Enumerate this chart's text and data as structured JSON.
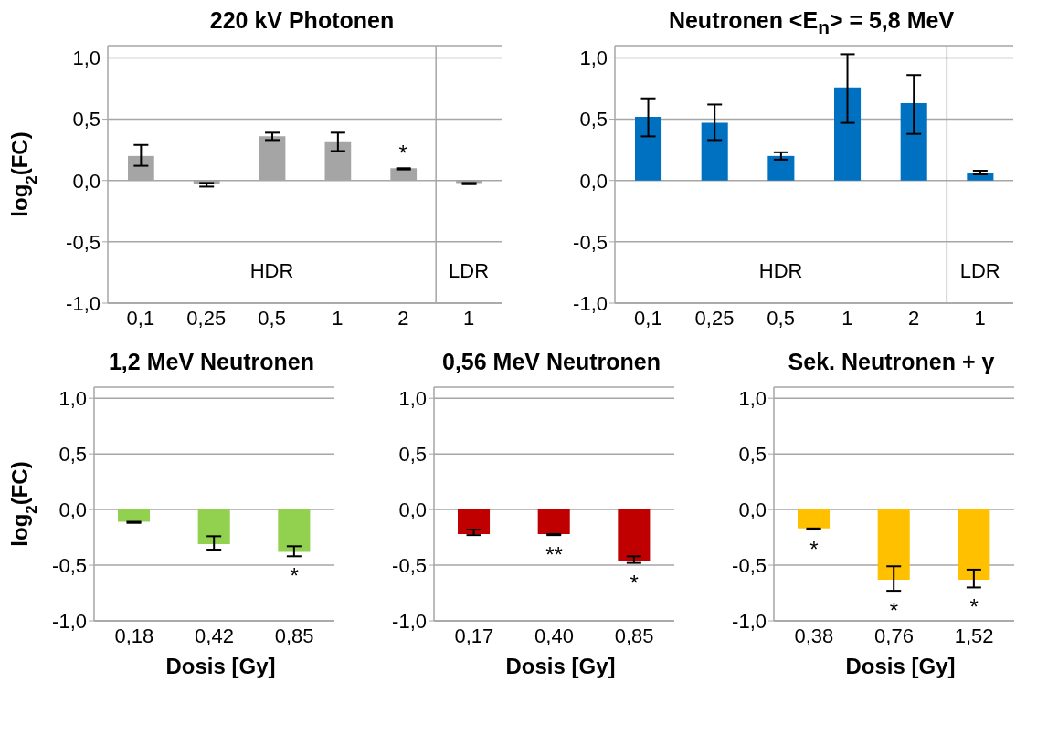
{
  "chart_data": [
    {
      "type": "bar",
      "title": "220 kV Photonen",
      "ylabel": "log$_{2}$(FC)",
      "categories": [
        "0,1",
        "0,25",
        "0,5",
        "1",
        "2",
        "1"
      ],
      "values": [
        0.2,
        -0.03,
        0.36,
        0.32,
        0.1,
        -0.02
      ],
      "errors": [
        [
          0.12,
          0.29
        ],
        [
          -0.05,
          -0.02
        ],
        [
          0.33,
          0.39
        ],
        [
          0.24,
          0.39
        ],
        [
          0.09,
          0.1
        ],
        [
          -0.03,
          -0.02
        ]
      ],
      "color": "#a5a5a5",
      "ylim": [
        -1,
        1.1
      ],
      "yticks": [
        {
          "value": -1,
          "label": "-1,0"
        },
        {
          "value": -0.5,
          "label": "-0,5"
        },
        {
          "value": 0,
          "label": "0,0"
        },
        {
          "value": 0.5,
          "label": "0,5"
        },
        {
          "value": 1,
          "label": "1,0"
        }
      ],
      "grid": "y",
      "annotations": [
        {
          "text": "*",
          "x": "2",
          "y": 0.1
        },
        "HDR",
        "LDR"
      ]
    },
    {
      "type": "bar",
      "title": "Neutronen <E$_{n}$> = 5,8 MeV",
      "categories": [
        "0,1",
        "0,25",
        "0,5",
        "1",
        "2",
        "1"
      ],
      "values": [
        0.52,
        0.47,
        0.2,
        0.76,
        0.63,
        0.06
      ],
      "errors": [
        [
          0.36,
          0.67
        ],
        [
          0.33,
          0.62
        ],
        [
          0.17,
          0.23
        ],
        [
          0.47,
          1.03
        ],
        [
          0.38,
          0.86
        ],
        [
          0.05,
          0.08
        ]
      ],
      "color": "#0070c0",
      "ylim": [
        -1,
        1.1
      ],
      "yticks": [
        {
          "value": -1,
          "label": "-1,0"
        },
        {
          "value": -0.5,
          "label": "-0,5"
        },
        {
          "value": 0,
          "label": "0,0"
        },
        {
          "value": 0.5,
          "label": "0,5"
        },
        {
          "value": 1,
          "label": "1,0"
        }
      ],
      "grid": "y",
      "annotations": [
        "HDR",
        "LDR"
      ]
    },
    {
      "type": "bar",
      "title": "1,2 MeV Neutronen",
      "ylabel": "log$_{2}$(FC)",
      "xlabel": "Dosis [Gy]",
      "categories": [
        "0,18",
        "0,42",
        "0,85"
      ],
      "values": [
        -0.11,
        -0.31,
        -0.38
      ],
      "errors": [
        [
          -0.12,
          -0.11
        ],
        [
          -0.36,
          -0.24
        ],
        [
          -0.42,
          -0.33
        ]
      ],
      "color": "#92d050",
      "ylim": [
        -1,
        1.1
      ],
      "yticks": [
        {
          "value": -1,
          "label": "-1,0"
        },
        {
          "value": -0.5,
          "label": "-0,5"
        },
        {
          "value": 0,
          "label": "0,0"
        },
        {
          "value": 0.5,
          "label": "0,5"
        },
        {
          "value": 1,
          "label": "1,0"
        }
      ],
      "grid": "y",
      "annotations": [
        {
          "text": "*",
          "x": "0,85",
          "y": -0.38
        }
      ]
    },
    {
      "type": "bar",
      "title": "0,56 MeV Neutronen",
      "xlabel": "Dosis [Gy]",
      "categories": [
        "0,17",
        "0,40",
        "0,85"
      ],
      "values": [
        -0.22,
        -0.22,
        -0.46
      ],
      "errors": [
        [
          -0.23,
          -0.18
        ],
        [
          -0.23,
          -0.22
        ],
        [
          -0.48,
          -0.42
        ]
      ],
      "color": "#c00000",
      "ylim": [
        -1,
        1.1
      ],
      "yticks": [
        {
          "value": -1,
          "label": "-1,0"
        },
        {
          "value": -0.5,
          "label": "-0,5"
        },
        {
          "value": 0,
          "label": "0,0"
        },
        {
          "value": 0.5,
          "label": "0,5"
        },
        {
          "value": 1,
          "label": "1,0"
        }
      ],
      "grid": "y",
      "annotations": [
        {
          "text": "**",
          "x": "0,40",
          "y": -0.22
        },
        {
          "text": "*",
          "x": "0,85",
          "y": -0.46
        }
      ]
    },
    {
      "type": "bar",
      "title": "Sek. Neutronen + γ",
      "xlabel": "Dosis [Gy]",
      "categories": [
        "0,38",
        "0,76",
        "1,52"
      ],
      "values": [
        -0.17,
        -0.63,
        -0.63
      ],
      "errors": [
        [
          -0.18,
          -0.17
        ],
        [
          -0.73,
          -0.51
        ],
        [
          -0.7,
          -0.54
        ]
      ],
      "color": "#ffc000",
      "ylim": [
        -1,
        1.1
      ],
      "yticks": [
        {
          "value": -1,
          "label": "-1,0"
        },
        {
          "value": -0.5,
          "label": "-0,5"
        },
        {
          "value": 0,
          "label": "0,0"
        },
        {
          "value": 0.5,
          "label": "0,5"
        },
        {
          "value": 1,
          "label": "1,0"
        }
      ],
      "grid": "y",
      "annotations": [
        {
          "text": "*",
          "x": "0,38",
          "y": -0.17
        },
        {
          "text": "*",
          "x": "0,76",
          "y": -0.63
        },
        {
          "text": "*",
          "x": "1,52",
          "y": -0.63
        }
      ]
    }
  ]
}
